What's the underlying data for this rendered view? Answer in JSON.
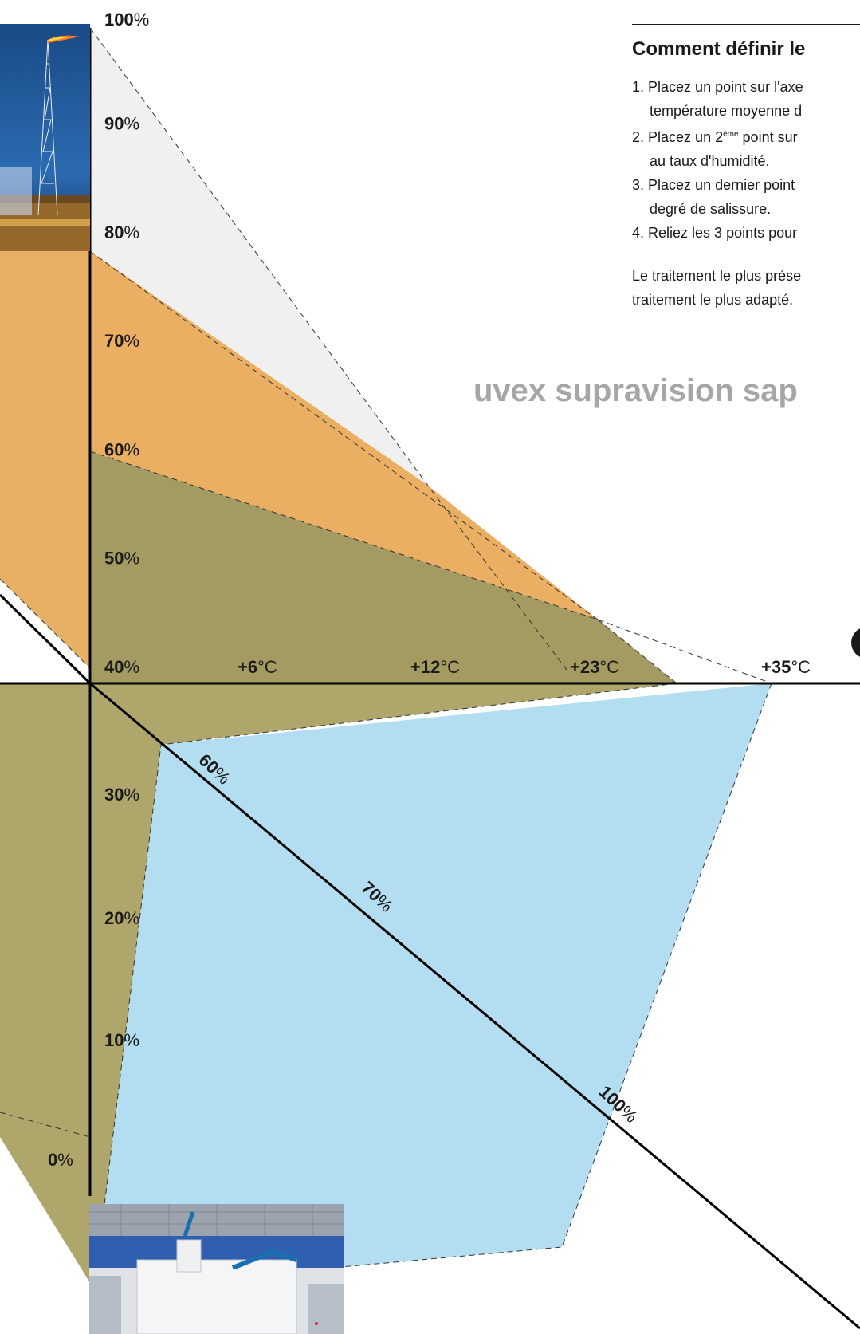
{
  "panel": {
    "title": "Comment définir le",
    "steps": [
      {
        "num": "1.",
        "line1": "Placez un point sur l'axe",
        "line2": "température moyenne d"
      },
      {
        "num": "2.",
        "line1_pre": "Placez un 2",
        "line1_sup": "ème",
        "line1_post": " point sur",
        "line2": "au taux d'humidité."
      },
      {
        "num": "3.",
        "line1": "Placez un dernier point",
        "line2": "degré de salissure."
      },
      {
        "num": "4.",
        "line1": "Reliez les 3 points pour"
      }
    ],
    "note_line1": "Le traitement le plus prése",
    "note_line2": "traitement le plus adapté."
  },
  "product_name": "uvex supravision sap",
  "chart_data": {
    "type": "radar",
    "axes": {
      "humidity": {
        "ticks": [
          {
            "v": 40,
            "label": "40"
          },
          {
            "v": 50,
            "label": "50"
          },
          {
            "v": 60,
            "label": "60"
          },
          {
            "v": 70,
            "label": "70"
          },
          {
            "v": 80,
            "label": "80"
          },
          {
            "v": 90,
            "label": "90"
          },
          {
            "v": 100,
            "label": "100"
          }
        ],
        "unit": "%"
      },
      "temperature": {
        "ticks": [
          {
            "v": 6,
            "label": "+6"
          },
          {
            "v": 12,
            "label": "+12"
          },
          {
            "v": 23,
            "label": "+23"
          },
          {
            "v": 35,
            "label": "+35"
          }
        ],
        "unit": "°C"
      },
      "soiling": {
        "ticks": [
          {
            "v": 60,
            "label": "60"
          },
          {
            "v": 70,
            "label": "70"
          },
          {
            "v": 100,
            "label": "100"
          }
        ],
        "unit": "%"
      },
      "lower": {
        "ticks": [
          {
            "v": 0,
            "label": "0"
          },
          {
            "v": 10,
            "label": "10"
          },
          {
            "v": 20,
            "label": "20"
          },
          {
            "v": 30,
            "label": "30"
          }
        ],
        "unit": "%"
      }
    },
    "series": [
      {
        "color": "#b3def1",
        "points": [
          [
            113,
            1395
          ],
          [
            202,
            934
          ],
          [
            968,
            857
          ],
          [
            705,
            1564
          ],
          [
            118,
            1617
          ]
        ]
      },
      {
        "color": "#aea66a",
        "points": [
          [
            0,
            857
          ],
          [
            113,
            857
          ],
          [
            113,
            566
          ],
          [
            750,
            777
          ],
          [
            849,
            857
          ],
          [
            202,
            934
          ],
          [
            118,
            1617
          ],
          [
            0,
            1426
          ]
        ]
      },
      {
        "color": "#f9c275",
        "points": [
          [
            0,
            726
          ],
          [
            113,
            838
          ],
          [
            113,
            315
          ],
          [
            537,
            609
          ],
          [
            750,
            777
          ],
          [
            113,
            566
          ]
        ]
      },
      {
        "color": "#e7b064",
        "points": [
          [
            0,
            315
          ],
          [
            113,
            315
          ],
          [
            113,
            838
          ],
          [
            0,
            726
          ]
        ]
      },
      {
        "color": "#f0f0f0",
        "points": [
          [
            113,
            35
          ],
          [
            537,
            609
          ],
          [
            113,
            315
          ]
        ]
      },
      {
        "color": "#eaaf62",
        "points": [
          [
            113,
            315
          ],
          [
            537,
            609
          ],
          [
            750,
            777
          ],
          [
            113,
            566
          ]
        ]
      },
      {
        "color": "#a39b61",
        "points": [
          [
            113,
            566
          ],
          [
            750,
            777
          ],
          [
            849,
            857
          ],
          [
            113,
            857
          ]
        ]
      }
    ],
    "dashes": [
      [
        [
          113,
          35
        ],
        [
          537,
          609
        ],
        [
          714,
          844
        ]
      ],
      [
        [
          113,
          315
        ],
        [
          750,
          777
        ]
      ],
      [
        [
          113,
          566
        ],
        [
          750,
          777
        ],
        [
          968,
          857
        ]
      ],
      [
        [
          750,
          777
        ],
        [
          849,
          857
        ]
      ],
      [
        [
          968,
          857
        ],
        [
          705,
          1564
        ],
        [
          118,
          1617
        ]
      ],
      [
        [
          849,
          857
        ],
        [
          202,
          934
        ],
        [
          118,
          1617
        ]
      ],
      [
        [
          0,
          726
        ],
        [
          113,
          838
        ]
      ],
      [
        [
          0,
          1395
        ],
        [
          113,
          1426
        ]
      ]
    ]
  }
}
